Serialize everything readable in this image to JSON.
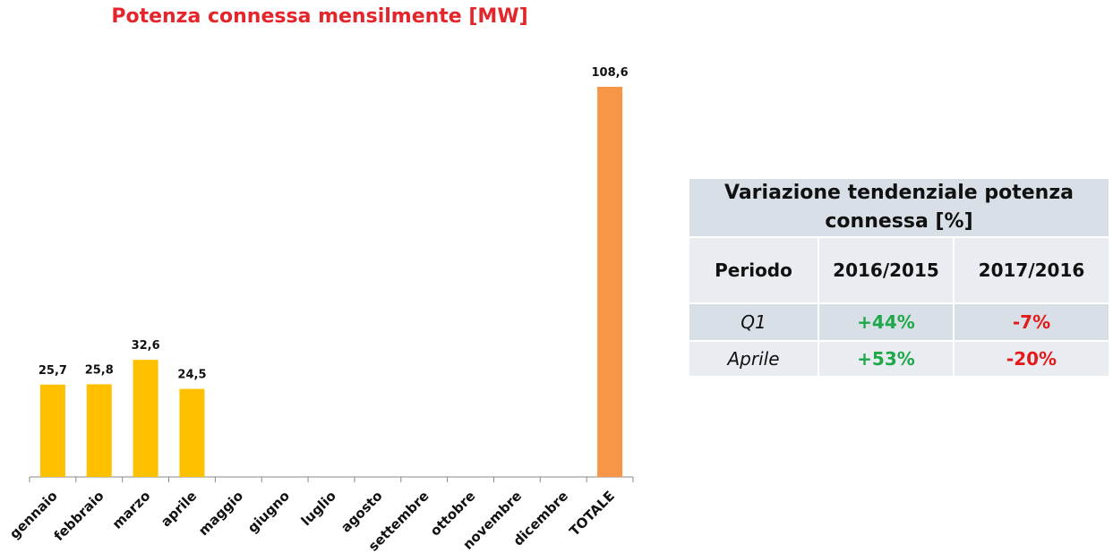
{
  "chart_data": {
    "type": "bar",
    "title": "Potenza connessa mensilmente [MW]",
    "categories": [
      "gennaio",
      "febbraio",
      "marzo",
      "aprile",
      "maggio",
      "giugno",
      "luglio",
      "agosto",
      "settembre",
      "ottobre",
      "novembre",
      "dicembre",
      "TOTALE"
    ],
    "values": [
      25.7,
      25.8,
      32.6,
      24.5,
      null,
      null,
      null,
      null,
      null,
      null,
      null,
      null,
      108.6
    ],
    "value_labels": [
      "25,7",
      "25,8",
      "32,6",
      "24,5",
      null,
      null,
      null,
      null,
      null,
      null,
      null,
      null,
      "108,6"
    ],
    "colors": [
      "#FFC000",
      "#FFC000",
      "#FFC000",
      "#FFC000",
      "#FFC000",
      "#FFC000",
      "#FFC000",
      "#FFC000",
      "#FFC000",
      "#FFC000",
      "#FFC000",
      "#FFC000",
      "#F79646"
    ]
  },
  "table": {
    "title": "Variazione tendenziale potenza connessa [%]",
    "header": [
      "Periodo",
      "2016/2015",
      "2017/2016"
    ],
    "rows": [
      [
        "Q1",
        "+44%",
        "-7%"
      ],
      [
        "Aprile",
        "+53%",
        "-20%"
      ]
    ]
  }
}
